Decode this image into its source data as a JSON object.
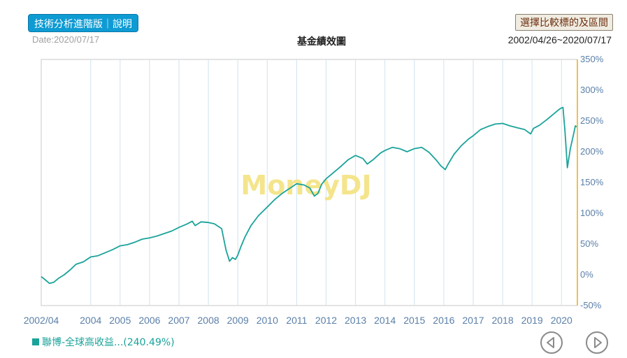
{
  "header": {
    "tech_button_label": "技術分析進階版｜說明",
    "date_label": "Date:2020/07/17",
    "title": "基金績效圖",
    "compare_button_label": "選擇比較標的及區間",
    "range_label": "2002/04/26~2020/07/17"
  },
  "watermark": "MoneyDJ",
  "colors": {
    "series": "#1aa39a",
    "right_axis": "#f0c24a",
    "grid": "#cfe3ee",
    "tick_text": "#5a7fa8"
  },
  "legend": {
    "label": "聯博-全球高收益...(240.49%)"
  },
  "nav": {
    "prev_icon": "triangle-left-icon",
    "next_icon": "triangle-right-icon"
  },
  "chart_data": {
    "type": "line",
    "title": "基金績效圖",
    "x_tick_labels": [
      "2002/04",
      "2004",
      "2005",
      "2006",
      "2007",
      "2008",
      "2009",
      "2010",
      "2011",
      "2012",
      "2013",
      "2014",
      "2015",
      "2016",
      "2017",
      "2018",
      "2019",
      "2020"
    ],
    "x_tick_positions": [
      2002.32,
      2004,
      2005,
      2006,
      2007,
      2008,
      2009,
      2010,
      2011,
      2012,
      2013,
      2014,
      2015,
      2016,
      2017,
      2018,
      2019,
      2020
    ],
    "y_tick_labels": [
      "350%",
      "300%",
      "250%",
      "200%",
      "150%",
      "100%",
      "50%",
      "0%",
      "-50%"
    ],
    "y_tick_values": [
      350,
      300,
      250,
      200,
      150,
      100,
      50,
      0,
      -50
    ],
    "xlim": [
      2002.32,
      2020.54
    ],
    "ylim": [
      -50,
      350
    ],
    "grid": true,
    "legend_position": "bottom-left",
    "series": [
      {
        "name": "聯博-全球高收益...(240.49%)",
        "x": [
          2002.32,
          2002.45,
          2002.6,
          2002.75,
          2002.9,
          2003.1,
          2003.3,
          2003.5,
          2003.75,
          2004.0,
          2004.25,
          2004.5,
          2004.75,
          2005.0,
          2005.25,
          2005.5,
          2005.75,
          2006.0,
          2006.25,
          2006.5,
          2006.75,
          2007.0,
          2007.25,
          2007.45,
          2007.55,
          2007.75,
          2008.0,
          2008.2,
          2008.45,
          2008.6,
          2008.72,
          2008.82,
          2008.92,
          2009.0,
          2009.1,
          2009.25,
          2009.45,
          2009.7,
          2010.0,
          2010.25,
          2010.5,
          2010.75,
          2011.0,
          2011.25,
          2011.45,
          2011.6,
          2011.72,
          2011.85,
          2012.0,
          2012.25,
          2012.5,
          2012.75,
          2013.0,
          2013.25,
          2013.4,
          2013.6,
          2013.85,
          2014.0,
          2014.25,
          2014.5,
          2014.75,
          2015.0,
          2015.25,
          2015.5,
          2015.75,
          2015.9,
          2016.05,
          2016.15,
          2016.35,
          2016.6,
          2016.85,
          2017.0,
          2017.25,
          2017.5,
          2017.75,
          2018.0,
          2018.25,
          2018.5,
          2018.75,
          2018.95,
          2019.05,
          2019.25,
          2019.5,
          2019.75,
          2019.95,
          2020.05,
          2020.12,
          2020.2,
          2020.3,
          2020.4,
          2020.47,
          2020.54
        ],
        "values": [
          -3,
          -8,
          -14,
          -12,
          -6,
          0,
          8,
          17,
          21,
          29,
          31,
          36,
          41,
          47,
          49,
          53,
          58,
          60,
          63,
          67,
          71,
          77,
          82,
          87,
          80,
          86,
          85,
          83,
          75,
          40,
          22,
          28,
          25,
          32,
          45,
          62,
          80,
          96,
          110,
          122,
          132,
          140,
          148,
          146,
          141,
          128,
          132,
          147,
          156,
          166,
          176,
          187,
          194,
          189,
          180,
          187,
          198,
          202,
          207,
          205,
          200,
          205,
          207,
          199,
          186,
          177,
          171,
          180,
          196,
          210,
          221,
          226,
          236,
          241,
          245,
          246,
          242,
          239,
          236,
          229,
          238,
          243,
          252,
          262,
          270,
          272,
          233,
          174,
          205,
          226,
          242,
          240
        ]
      }
    ]
  }
}
